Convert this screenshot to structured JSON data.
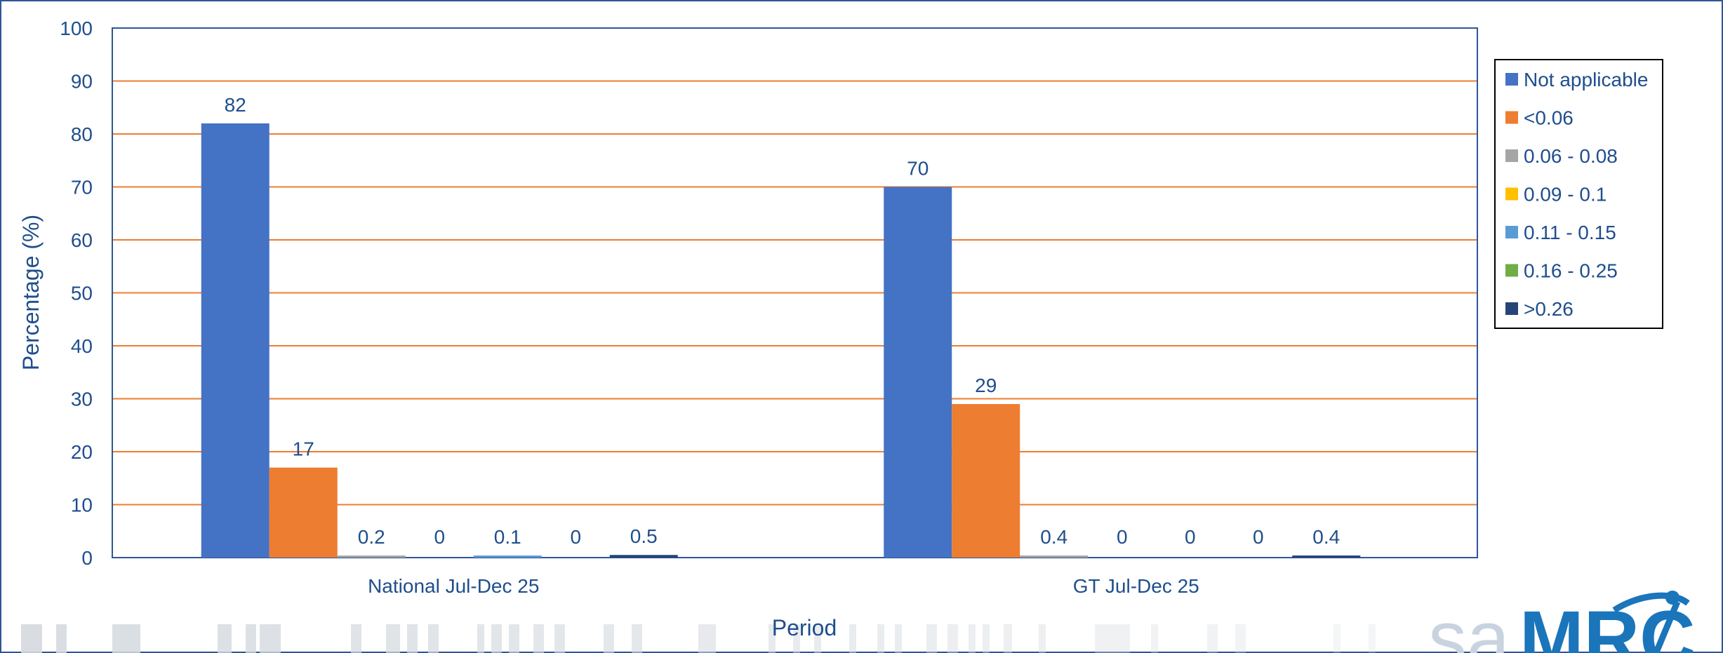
{
  "chart_data": {
    "type": "bar",
    "title": "",
    "xlabel": "Period",
    "ylabel": "Percentage (%)",
    "ylim": [
      0,
      100
    ],
    "yticks": [
      0,
      10,
      20,
      30,
      40,
      50,
      60,
      70,
      80,
      90,
      100
    ],
    "grid": true,
    "legend_position": "right",
    "categories": [
      "National Jul-Dec 25",
      "GT Jul-Dec 25"
    ],
    "series": [
      {
        "name": "Not applicable",
        "color": "#4472c4",
        "values": [
          82,
          70
        ],
        "labels": [
          "82",
          "70"
        ]
      },
      {
        "name": "<0.06",
        "color": "#ed7d31",
        "values": [
          17,
          29
        ],
        "labels": [
          "17",
          "29"
        ]
      },
      {
        "name": "0.06 - 0.08",
        "color": "#a5a5a5",
        "values": [
          0.2,
          0.4
        ],
        "labels": [
          "0.2",
          "0.4"
        ]
      },
      {
        "name": "0.09 - 0.1",
        "color": "#ffc000",
        "values": [
          0,
          0
        ],
        "labels": [
          "0",
          "0"
        ]
      },
      {
        "name": "0.11 - 0.15",
        "color": "#5b9bd5",
        "values": [
          0.1,
          0
        ],
        "labels": [
          "0.1",
          "0"
        ]
      },
      {
        "name": "0.16 - 0.25",
        "color": "#70ad47",
        "values": [
          0,
          0
        ],
        "labels": [
          "0",
          "0"
        ]
      },
      {
        "name": ">0.26",
        "color": "#264478",
        "values": [
          0.5,
          0.4
        ],
        "labels": [
          "0.5",
          "0.4"
        ]
      }
    ],
    "colors": {
      "gridline": "#ed7d31",
      "axis_text": "#1f4e8c",
      "frame": "#2f5597"
    }
  },
  "branding": {
    "logo_text": "saMRC",
    "logo_icon": "samrc-logo-icon"
  }
}
